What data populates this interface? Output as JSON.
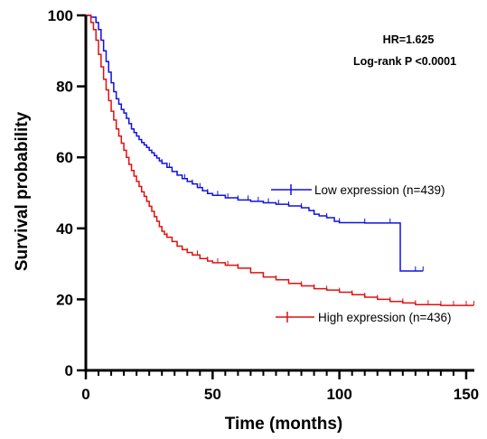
{
  "chart_data": {
    "type": "line",
    "xlabel": "Time (months)",
    "ylabel": "Survival probability",
    "xlim": [
      0,
      155
    ],
    "ylim": [
      0,
      100
    ],
    "x_ticks": [
      0,
      50,
      100,
      150
    ],
    "y_ticks": [
      0,
      20,
      40,
      60,
      80,
      100
    ],
    "x_minor_step": 5,
    "grid": false,
    "legend": "inline-right",
    "annotations": [
      "HR=1.625",
      "Log-rank P <0.0001"
    ],
    "series": [
      {
        "name": "Low expression (n=439)",
        "color": "#1010e0",
        "points": [
          [
            0,
            100
          ],
          [
            2,
            99.5
          ],
          [
            4,
            98
          ],
          [
            5,
            96
          ],
          [
            6,
            93
          ],
          [
            7,
            90
          ],
          [
            8,
            87
          ],
          [
            9,
            84
          ],
          [
            10,
            81
          ],
          [
            11,
            78.5
          ],
          [
            12,
            76.5
          ],
          [
            13,
            75
          ],
          [
            14,
            73.5
          ],
          [
            15,
            72.5
          ],
          [
            16,
            71
          ],
          [
            17,
            69.5
          ],
          [
            18,
            68
          ],
          [
            19,
            67
          ],
          [
            20,
            66
          ],
          [
            21,
            65
          ],
          [
            22,
            64.2
          ],
          [
            23,
            63.5
          ],
          [
            24,
            62.8
          ],
          [
            25,
            62
          ],
          [
            26,
            61.3
          ],
          [
            27,
            60.5
          ],
          [
            28,
            59.8
          ],
          [
            29,
            59
          ],
          [
            30,
            58.3
          ],
          [
            32,
            57.2
          ],
          [
            34,
            56
          ],
          [
            36,
            55
          ],
          [
            38,
            54
          ],
          [
            40,
            53.2
          ],
          [
            42,
            52.5
          ],
          [
            44,
            51.5
          ],
          [
            46,
            50.6
          ],
          [
            48,
            49.8
          ],
          [
            50,
            49.3
          ],
          [
            55,
            48.6
          ],
          [
            60,
            48
          ],
          [
            65,
            47.6
          ],
          [
            70,
            47.2
          ],
          [
            75,
            46.8
          ],
          [
            80,
            46.3
          ],
          [
            85,
            45.8
          ],
          [
            88,
            45
          ],
          [
            90,
            44
          ],
          [
            92,
            43.5
          ],
          [
            95,
            43
          ],
          [
            98,
            42
          ],
          [
            100,
            41.6
          ],
          [
            110,
            41.5
          ],
          [
            124,
            41.5
          ],
          [
            124,
            28
          ],
          [
            133,
            28
          ]
        ],
        "censor_x": [
          30,
          33,
          36,
          39,
          42,
          45,
          48,
          52,
          56,
          60,
          64,
          68,
          72,
          76,
          80,
          85,
          90,
          95,
          100,
          110,
          120,
          130,
          133
        ]
      },
      {
        "name": "High expression (n=436)",
        "color": "#e01010",
        "points": [
          [
            0,
            100
          ],
          [
            2,
            98
          ],
          [
            3,
            96
          ],
          [
            4,
            93
          ],
          [
            5,
            89
          ],
          [
            6,
            85.5
          ],
          [
            7,
            82
          ],
          [
            8,
            79
          ],
          [
            9,
            76
          ],
          [
            10,
            73
          ],
          [
            11,
            70.5
          ],
          [
            12,
            68
          ],
          [
            13,
            66
          ],
          [
            14,
            64
          ],
          [
            15,
            62
          ],
          [
            16,
            60
          ],
          [
            17,
            58
          ],
          [
            18,
            56.3
          ],
          [
            19,
            54.7
          ],
          [
            20,
            53.2
          ],
          [
            21,
            51.8
          ],
          [
            22,
            50.3
          ],
          [
            23,
            49
          ],
          [
            24,
            47.6
          ],
          [
            25,
            46.2
          ],
          [
            26,
            44.8
          ],
          [
            27,
            43.3
          ],
          [
            28,
            42
          ],
          [
            29,
            40.5
          ],
          [
            30,
            39.2
          ],
          [
            31,
            38.3
          ],
          [
            32,
            37.5
          ],
          [
            34,
            36.3
          ],
          [
            36,
            35
          ],
          [
            38,
            34
          ],
          [
            40,
            33.2
          ],
          [
            42,
            32.5
          ],
          [
            45,
            31.5
          ],
          [
            48,
            30.8
          ],
          [
            50,
            30.3
          ],
          [
            55,
            29.6
          ],
          [
            60,
            28.8
          ],
          [
            65,
            27.5
          ],
          [
            70,
            26.3
          ],
          [
            75,
            25.5
          ],
          [
            80,
            24.5
          ],
          [
            85,
            23.8
          ],
          [
            90,
            23
          ],
          [
            95,
            22.6
          ],
          [
            100,
            22
          ],
          [
            105,
            21.3
          ],
          [
            110,
            20.6
          ],
          [
            115,
            20
          ],
          [
            120,
            19.4
          ],
          [
            125,
            19
          ],
          [
            130,
            18.5
          ],
          [
            140,
            18.3
          ],
          [
            153,
            18.3
          ]
        ],
        "censor_x": [
          28,
          32,
          36,
          40,
          44,
          48,
          52,
          56,
          60,
          65,
          70,
          75,
          80,
          85,
          90,
          95,
          100,
          105,
          110,
          115,
          120,
          125,
          130,
          135,
          140,
          145,
          150,
          153
        ]
      }
    ]
  }
}
